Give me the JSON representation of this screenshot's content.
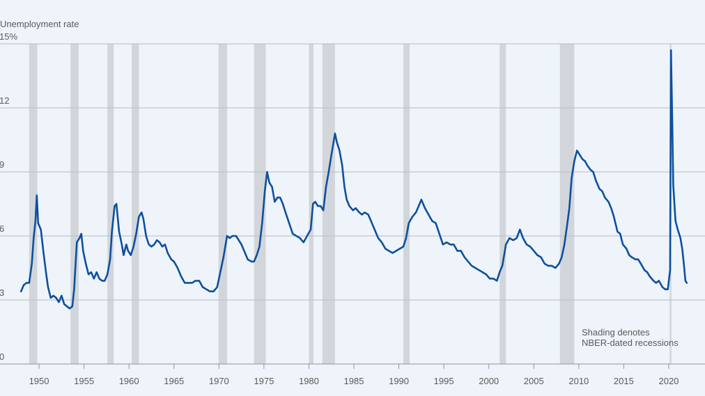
{
  "chart_data": {
    "type": "line",
    "title": "Unemployment rate",
    "annotation": [
      "Shading denotes",
      "NBER-dated recessions"
    ],
    "color": "#0e4f9e",
    "recession_color": "#d2d6da",
    "grid": true,
    "xlim": [
      1945.66,
      2024.03
    ],
    "xticks": [
      1950,
      1955,
      1960,
      1965,
      1970,
      1975,
      1980,
      1985,
      1990,
      1995,
      2000,
      2005,
      2010,
      2015,
      2020
    ],
    "ylim": [
      0,
      15
    ],
    "yticks": [
      0,
      3,
      6,
      9,
      12,
      {
        "value": 15,
        "label": "15%"
      }
    ],
    "recessions": [
      [
        1948.9,
        1949.8
      ],
      [
        1953.5,
        1954.4
      ],
      [
        1957.6,
        1958.3
      ],
      [
        1960.3,
        1961.1
      ],
      [
        1969.95,
        1970.9
      ],
      [
        1973.9,
        1975.2
      ],
      [
        1980.0,
        1980.5
      ],
      [
        1981.5,
        1982.9
      ],
      [
        1990.5,
        1991.2
      ],
      [
        2001.2,
        2001.9
      ],
      [
        2007.9,
        2009.5
      ],
      [
        2020.1,
        2020.3
      ]
    ],
    "x": [
      1948.0,
      1948.3,
      1948.6,
      1948.9,
      1949.2,
      1949.4,
      1949.6,
      1949.75,
      1949.9,
      1950.2,
      1950.5,
      1950.8,
      1951.0,
      1951.3,
      1951.6,
      1951.9,
      1952.2,
      1952.5,
      1952.8,
      1953.1,
      1953.4,
      1953.7,
      1953.9,
      1954.2,
      1954.5,
      1954.7,
      1954.9,
      1955.2,
      1955.5,
      1955.8,
      1956.1,
      1956.4,
      1956.7,
      1957.0,
      1957.3,
      1957.6,
      1957.9,
      1958.1,
      1958.4,
      1958.6,
      1958.9,
      1959.2,
      1959.4,
      1959.7,
      1959.9,
      1960.2,
      1960.5,
      1960.8,
      1961.1,
      1961.4,
      1961.6,
      1961.9,
      1962.2,
      1962.5,
      1962.8,
      1963.1,
      1963.4,
      1963.7,
      1964.0,
      1964.3,
      1964.7,
      1965.0,
      1965.4,
      1965.8,
      1966.2,
      1966.6,
      1967.0,
      1967.4,
      1967.8,
      1968.2,
      1968.6,
      1969.0,
      1969.4,
      1969.8,
      1970.2,
      1970.5,
      1970.9,
      1971.2,
      1971.5,
      1971.9,
      1972.2,
      1972.5,
      1972.9,
      1973.2,
      1973.6,
      1973.9,
      1974.2,
      1974.5,
      1974.8,
      1975.1,
      1975.35,
      1975.6,
      1975.9,
      1976.2,
      1976.5,
      1976.8,
      1977.1,
      1977.4,
      1977.8,
      1978.2,
      1978.6,
      1979.0,
      1979.4,
      1979.8,
      1980.2,
      1980.45,
      1980.7,
      1981.0,
      1981.3,
      1981.6,
      1981.9,
      1982.2,
      1982.5,
      1982.9,
      1983.1,
      1983.4,
      1983.7,
      1983.95,
      1984.2,
      1984.5,
      1984.9,
      1985.2,
      1985.6,
      1985.9,
      1986.2,
      1986.6,
      1986.9,
      1987.3,
      1987.7,
      1988.1,
      1988.5,
      1988.9,
      1989.3,
      1989.7,
      1990.1,
      1990.5,
      1990.8,
      1991.1,
      1991.5,
      1991.9,
      1992.3,
      1992.5,
      1992.9,
      1993.3,
      1993.7,
      1994.1,
      1994.5,
      1994.9,
      1995.3,
      1995.7,
      1996.1,
      1996.5,
      1996.9,
      1997.3,
      1997.7,
      1998.1,
      1998.5,
      1998.9,
      1999.3,
      1999.7,
      2000.1,
      2000.5,
      2000.9,
      2001.2,
      2001.5,
      2001.9,
      2002.3,
      2002.7,
      2003.1,
      2003.45,
      2003.8,
      2004.2,
      2004.6,
      2005.0,
      2005.4,
      2005.8,
      2006.2,
      2006.6,
      2007.0,
      2007.4,
      2007.8,
      2008.1,
      2008.4,
      2008.7,
      2008.95,
      2009.2,
      2009.5,
      2009.8,
      2010.1,
      2010.4,
      2010.7,
      2010.95,
      2011.3,
      2011.6,
      2011.9,
      2012.3,
      2012.6,
      2012.9,
      2013.3,
      2013.6,
      2013.9,
      2014.3,
      2014.6,
      2014.9,
      2015.3,
      2015.6,
      2015.9,
      2016.3,
      2016.6,
      2016.9,
      2017.3,
      2017.6,
      2017.9,
      2018.3,
      2018.6,
      2018.9,
      2019.3,
      2019.6,
      2019.9,
      2020.15,
      2020.25,
      2020.4,
      2020.5,
      2020.75,
      2021.0,
      2021.3,
      2021.5,
      2021.7,
      2021.85,
      2022.0
    ],
    "values": [
      3.4,
      3.7,
      3.8,
      3.8,
      4.7,
      5.9,
      6.7,
      7.9,
      6.6,
      6.3,
      5.2,
      4.2,
      3.6,
      3.1,
      3.2,
      3.1,
      2.9,
      3.2,
      2.8,
      2.7,
      2.6,
      2.7,
      3.5,
      5.7,
      5.9,
      6.1,
      5.3,
      4.7,
      4.2,
      4.3,
      4.0,
      4.3,
      4.0,
      3.9,
      3.9,
      4.2,
      4.9,
      6.2,
      7.4,
      7.5,
      6.2,
      5.6,
      5.1,
      5.6,
      5.3,
      5.1,
      5.5,
      6.1,
      6.9,
      7.1,
      6.8,
      6.0,
      5.6,
      5.5,
      5.6,
      5.8,
      5.7,
      5.5,
      5.6,
      5.2,
      4.9,
      4.8,
      4.5,
      4.1,
      3.8,
      3.8,
      3.8,
      3.9,
      3.9,
      3.6,
      3.5,
      3.4,
      3.4,
      3.6,
      4.4,
      5.0,
      6.0,
      5.9,
      6.0,
      6.0,
      5.8,
      5.6,
      5.2,
      4.9,
      4.8,
      4.8,
      5.1,
      5.5,
      6.6,
      8.1,
      9.0,
      8.5,
      8.3,
      7.6,
      7.8,
      7.8,
      7.5,
      7.1,
      6.6,
      6.1,
      6.0,
      5.9,
      5.7,
      6.0,
      6.3,
      7.5,
      7.6,
      7.4,
      7.4,
      7.2,
      8.3,
      9.0,
      9.8,
      10.8,
      10.4,
      10.0,
      9.3,
      8.3,
      7.7,
      7.4,
      7.2,
      7.3,
      7.1,
      7.0,
      7.1,
      7.0,
      6.7,
      6.3,
      5.9,
      5.7,
      5.4,
      5.3,
      5.2,
      5.3,
      5.4,
      5.5,
      5.9,
      6.6,
      6.9,
      7.1,
      7.5,
      7.7,
      7.3,
      7.0,
      6.7,
      6.6,
      6.1,
      5.6,
      5.7,
      5.6,
      5.6,
      5.3,
      5.3,
      5.0,
      4.8,
      4.6,
      4.5,
      4.4,
      4.3,
      4.2,
      4.0,
      4.0,
      3.9,
      4.3,
      4.6,
      5.6,
      5.9,
      5.8,
      5.9,
      6.3,
      5.9,
      5.6,
      5.5,
      5.3,
      5.1,
      5.0,
      4.7,
      4.6,
      4.6,
      4.5,
      4.7,
      5.0,
      5.6,
      6.5,
      7.3,
      8.7,
      9.5,
      10.0,
      9.8,
      9.6,
      9.5,
      9.3,
      9.1,
      9.0,
      8.6,
      8.2,
      8.1,
      7.8,
      7.6,
      7.3,
      6.9,
      6.2,
      6.1,
      5.6,
      5.4,
      5.1,
      5.0,
      4.9,
      4.9,
      4.7,
      4.4,
      4.3,
      4.1,
      3.9,
      3.8,
      3.9,
      3.6,
      3.5,
      3.5,
      4.4,
      14.7,
      11.1,
      8.4,
      6.7,
      6.3,
      5.9,
      5.4,
      4.6,
      3.9,
      3.8
    ]
  }
}
